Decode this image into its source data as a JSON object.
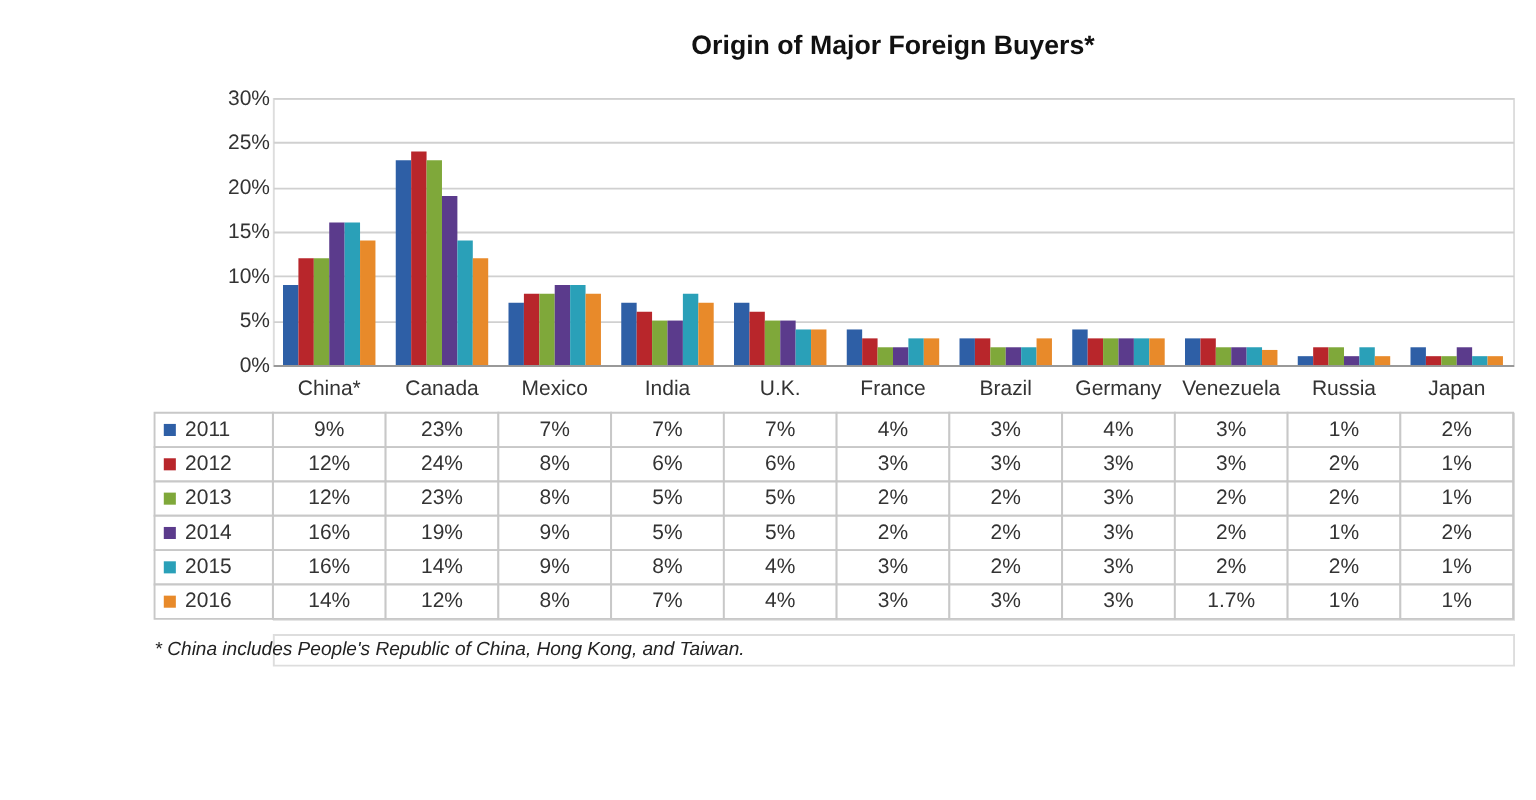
{
  "chart_data": {
    "type": "bar",
    "title": "Origin of Major Foreign Buyers*",
    "categories": [
      "China*",
      "Canada",
      "Mexico",
      "India",
      "U.K.",
      "France",
      "Brazil",
      "Germany",
      "Venezuela",
      "Russia",
      "Japan"
    ],
    "series": [
      {
        "name": "2011",
        "color": "#2e5fa6",
        "values": [
          9,
          23,
          7,
          7,
          7,
          4,
          3,
          4,
          3,
          1,
          2
        ],
        "value_labels": [
          "9%",
          "23%",
          "7%",
          "7%",
          "7%",
          "4%",
          "3%",
          "4%",
          "3%",
          "1%",
          "2%"
        ]
      },
      {
        "name": "2012",
        "color": "#b8262b",
        "values": [
          12,
          24,
          8,
          6,
          6,
          3,
          3,
          3,
          3,
          2,
          1
        ],
        "value_labels": [
          "12%",
          "24%",
          "8%",
          "6%",
          "6%",
          "3%",
          "3%",
          "3%",
          "3%",
          "2%",
          "1%"
        ]
      },
      {
        "name": "2013",
        "color": "#7fa83a",
        "values": [
          12,
          23,
          8,
          5,
          5,
          2,
          2,
          3,
          2,
          2,
          1
        ],
        "value_labels": [
          "12%",
          "23%",
          "8%",
          "5%",
          "5%",
          "2%",
          "2%",
          "3%",
          "2%",
          "2%",
          "1%"
        ]
      },
      {
        "name": "2014",
        "color": "#5b3b8c",
        "values": [
          16,
          19,
          9,
          5,
          5,
          2,
          2,
          3,
          2,
          1,
          2
        ],
        "value_labels": [
          "16%",
          "19%",
          "9%",
          "5%",
          "5%",
          "2%",
          "2%",
          "3%",
          "2%",
          "1%",
          "2%"
        ]
      },
      {
        "name": "2015",
        "color": "#2aa0b8",
        "values": [
          16,
          14,
          9,
          8,
          4,
          3,
          2,
          3,
          2,
          2,
          1
        ],
        "value_labels": [
          "16%",
          "14%",
          "9%",
          "8%",
          "4%",
          "3%",
          "2%",
          "3%",
          "2%",
          "2%",
          "1%"
        ]
      },
      {
        "name": "2016",
        "color": "#e88a2a",
        "values": [
          14,
          12,
          8,
          7,
          4,
          3,
          3,
          3,
          1.7,
          1,
          1
        ],
        "value_labels": [
          "14%",
          "12%",
          "8%",
          "7%",
          "4%",
          "3%",
          "3%",
          "3%",
          "1.7%",
          "1%",
          "1%"
        ]
      }
    ],
    "ylim": [
      0,
      30
    ],
    "yticks": [
      {
        "value": 0,
        "label": "0%"
      },
      {
        "value": 5,
        "label": "5%"
      },
      {
        "value": 10,
        "label": "10%"
      },
      {
        "value": 15,
        "label": "15%"
      },
      {
        "value": 20,
        "label": "20%"
      },
      {
        "value": 25,
        "label": "25%"
      },
      {
        "value": 30,
        "label": "30%"
      }
    ],
    "grid": "y",
    "legend": "bottom left",
    "annotations": [
      "* China includes People's Republic of China, Hong Kong, and Taiwan."
    ]
  }
}
